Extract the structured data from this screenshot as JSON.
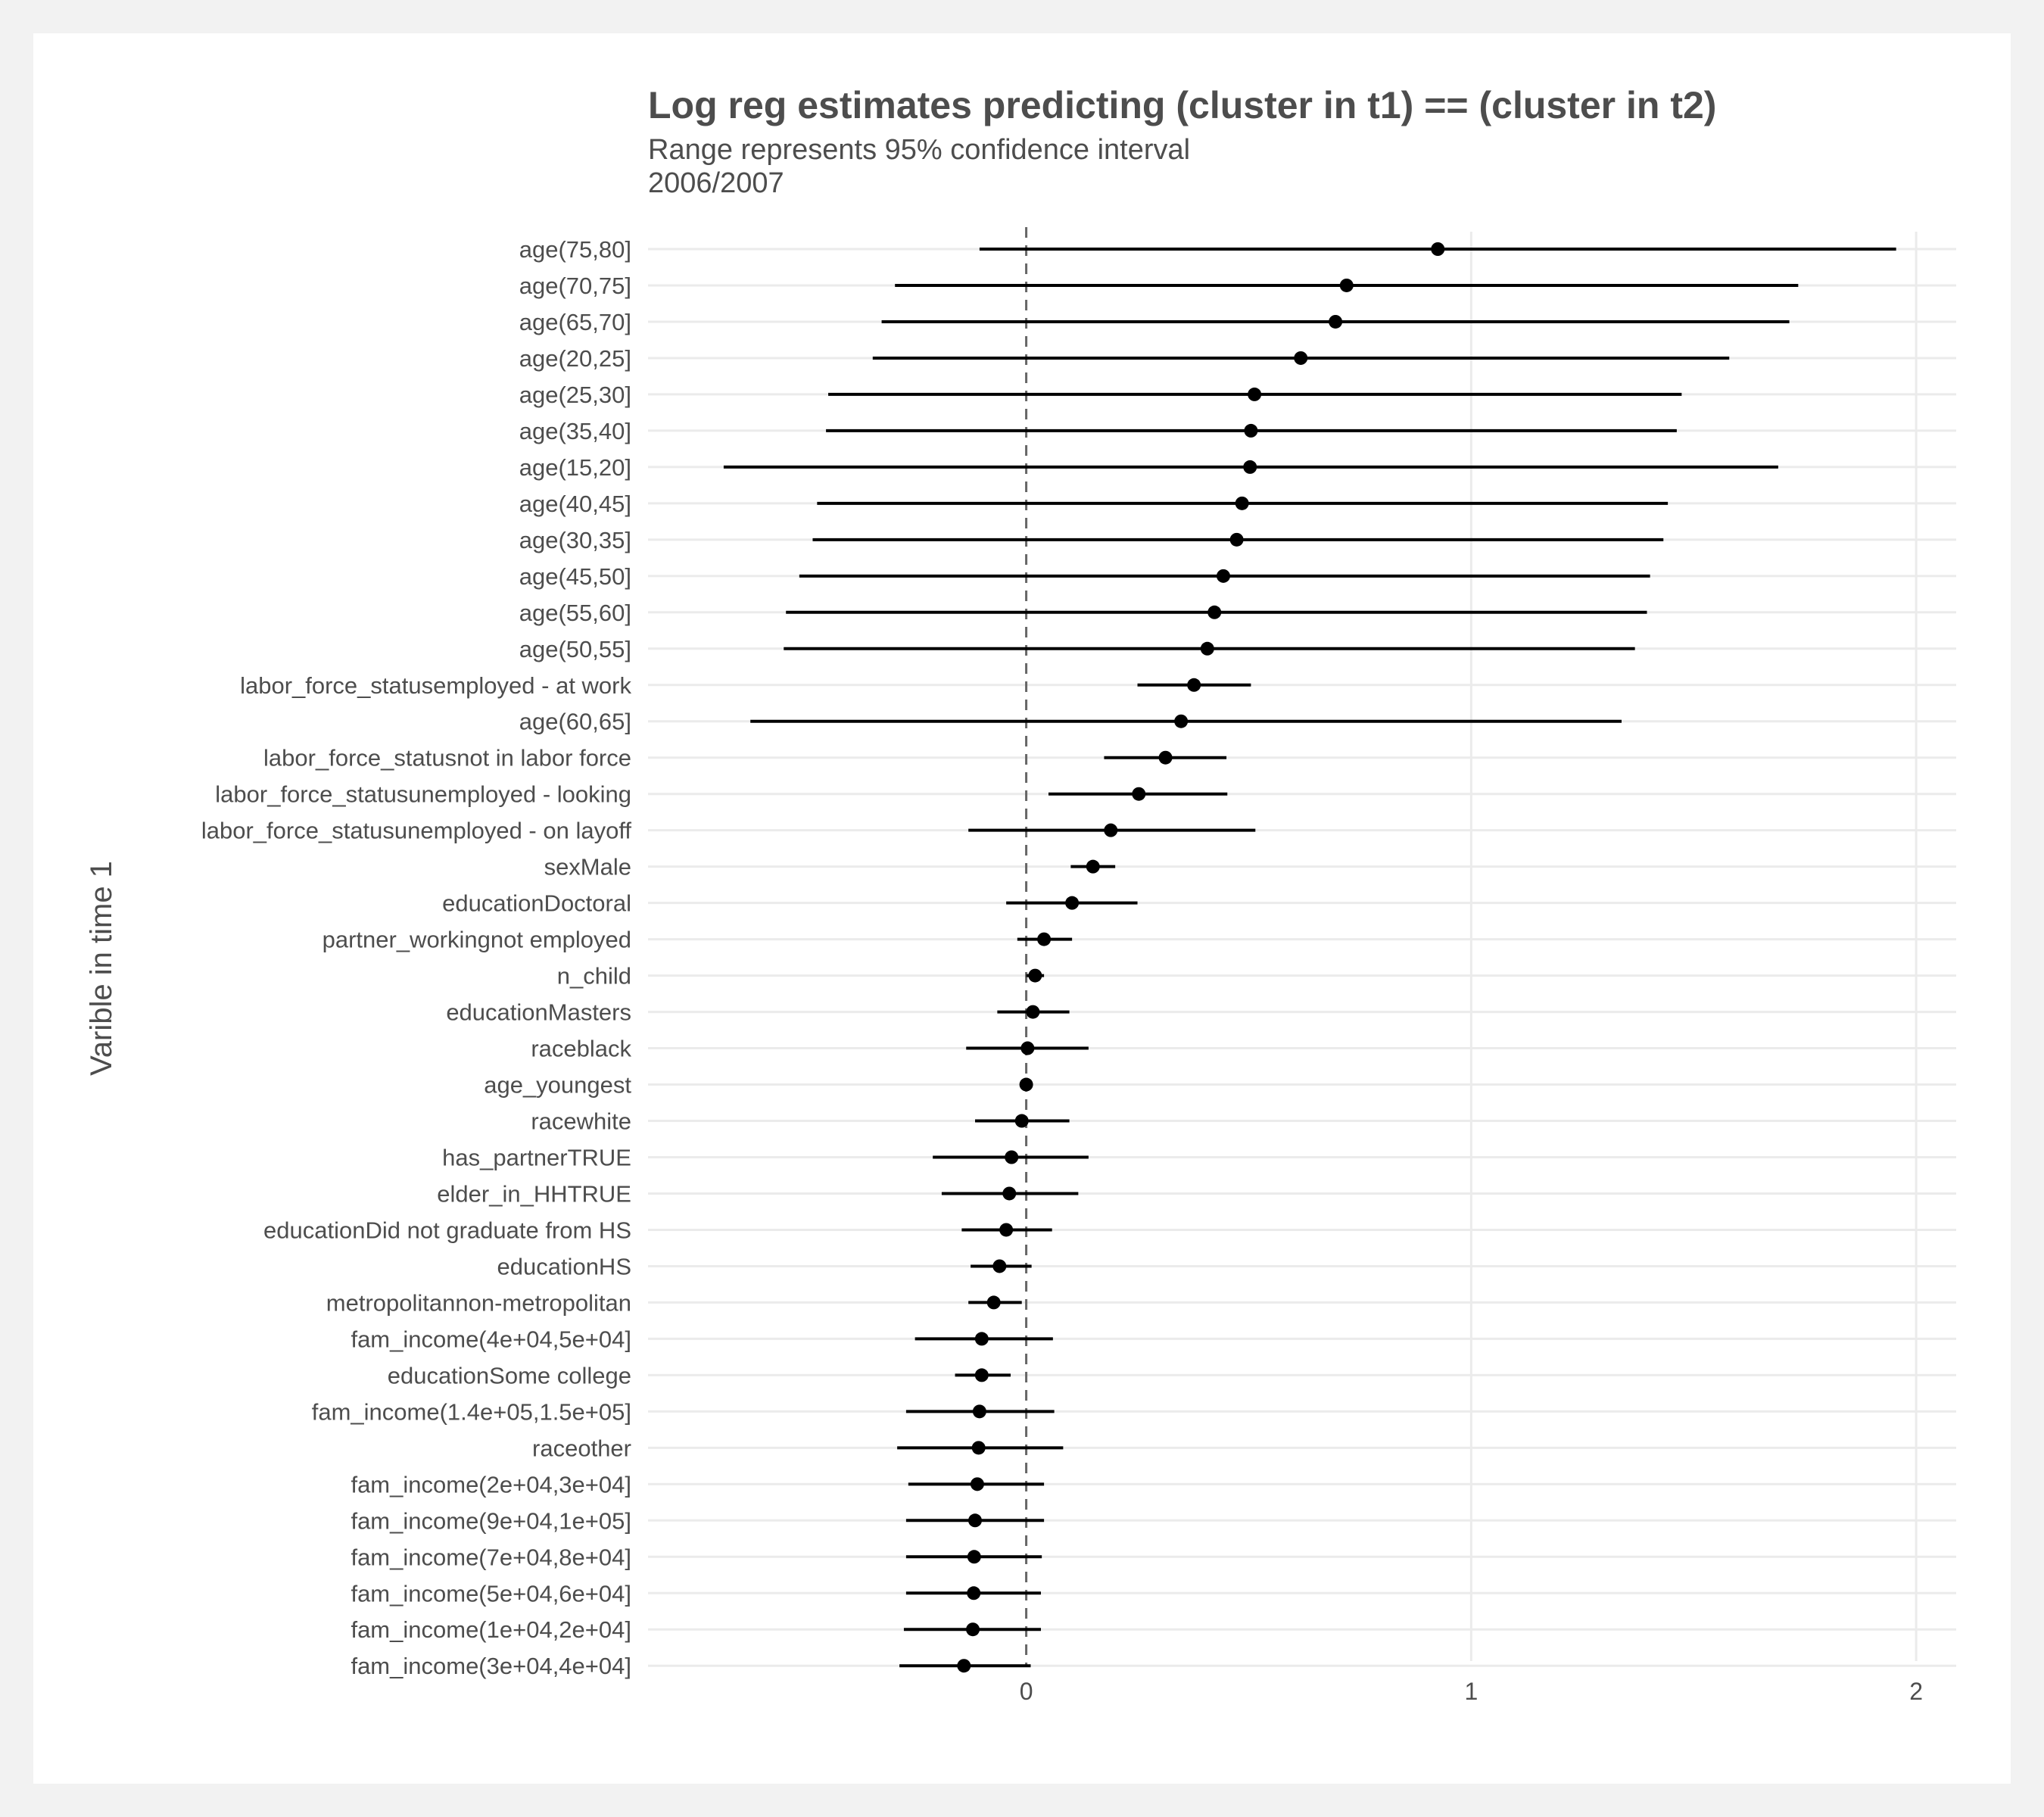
{
  "chart_data": {
    "type": "scatter",
    "subtype": "coefficient-plot",
    "title": "Log reg estimates predicting (cluster in t1) == (cluster in t2)",
    "subtitle_lines": [
      "Range represents 95% confidence interval",
      "2006/2007"
    ],
    "xlabel": "",
    "ylabel": "Varible in time 1",
    "xlim": [
      -0.85,
      2.09
    ],
    "x_ticks": [
      0,
      1,
      2
    ],
    "reference_line": 0,
    "grid": true,
    "legend": "none",
    "colors": {
      "point": "#000000",
      "interval": "#000000",
      "grid": "#ebebeb",
      "reference": "#666666"
    },
    "rows": [
      {
        "label": "age(75,80]",
        "estimate": 0.925,
        "lower": -0.105,
        "upper": 1.955
      },
      {
        "label": "age(70,75]",
        "estimate": 0.72,
        "lower": -0.295,
        "upper": 1.735
      },
      {
        "label": "age(65,70]",
        "estimate": 0.695,
        "lower": -0.325,
        "upper": 1.715
      },
      {
        "label": "age(20,25]",
        "estimate": 0.617,
        "lower": -0.345,
        "upper": 1.58
      },
      {
        "label": "age(25,30]",
        "estimate": 0.513,
        "lower": -0.445,
        "upper": 1.473
      },
      {
        "label": "age(35,40]",
        "estimate": 0.505,
        "lower": -0.45,
        "upper": 1.462
      },
      {
        "label": "age(15,20]",
        "estimate": 0.503,
        "lower": -0.68,
        "upper": 1.69
      },
      {
        "label": "age(40,45]",
        "estimate": 0.485,
        "lower": -0.47,
        "upper": 1.442
      },
      {
        "label": "age(30,35]",
        "estimate": 0.473,
        "lower": -0.48,
        "upper": 1.432
      },
      {
        "label": "age(45,50]",
        "estimate": 0.443,
        "lower": -0.51,
        "upper": 1.402
      },
      {
        "label": "age(55,60]",
        "estimate": 0.423,
        "lower": -0.54,
        "upper": 1.395
      },
      {
        "label": "age(50,55]",
        "estimate": 0.407,
        "lower": -0.545,
        "upper": 1.368
      },
      {
        "label": "labor_force_statusemployed - at work",
        "estimate": 0.377,
        "lower": 0.25,
        "upper": 0.505
      },
      {
        "label": "age(60,65]",
        "estimate": 0.348,
        "lower": -0.62,
        "upper": 1.338
      },
      {
        "label": "labor_force_statusnot in labor force",
        "estimate": 0.313,
        "lower": 0.175,
        "upper": 0.45
      },
      {
        "label": "labor_force_statusunemployed - looking",
        "estimate": 0.253,
        "lower": 0.05,
        "upper": 0.452
      },
      {
        "label": "labor_force_statusunemployed - on layoff",
        "estimate": 0.19,
        "lower": -0.13,
        "upper": 0.515
      },
      {
        "label": "sexMale",
        "estimate": 0.15,
        "lower": 0.1,
        "upper": 0.2
      },
      {
        "label": "educationDoctoral",
        "estimate": 0.103,
        "lower": -0.045,
        "upper": 0.25
      },
      {
        "label": "partner_workingnot employed",
        "estimate": 0.04,
        "lower": -0.02,
        "upper": 0.103
      },
      {
        "label": "n_child",
        "estimate": 0.02,
        "lower": 0.0,
        "upper": 0.04
      },
      {
        "label": "educationMasters",
        "estimate": 0.015,
        "lower": -0.065,
        "upper": 0.097
      },
      {
        "label": "raceblack",
        "estimate": 0.003,
        "lower": -0.135,
        "upper": 0.14
      },
      {
        "label": "age_youngest",
        "estimate": 0.0,
        "lower": -0.005,
        "upper": 0.005
      },
      {
        "label": "racewhite",
        "estimate": -0.01,
        "lower": -0.115,
        "upper": 0.097
      },
      {
        "label": "has_partnerTRUE",
        "estimate": -0.033,
        "lower": -0.21,
        "upper": 0.14
      },
      {
        "label": "elder_in_HHTRUE",
        "estimate": -0.038,
        "lower": -0.19,
        "upper": 0.117
      },
      {
        "label": "educationDid not graduate from HS",
        "estimate": -0.045,
        "lower": -0.145,
        "upper": 0.058
      },
      {
        "label": "educationHS",
        "estimate": -0.06,
        "lower": -0.125,
        "upper": 0.012
      },
      {
        "label": "metropolitannon-metropolitan",
        "estimate": -0.073,
        "lower": -0.13,
        "upper": -0.01
      },
      {
        "label": "fam_income(4e+04,5e+04]",
        "estimate": -0.1,
        "lower": -0.25,
        "upper": 0.06
      },
      {
        "label": "educationSome college",
        "estimate": -0.1,
        "lower": -0.16,
        "upper": -0.035
      },
      {
        "label": "fam_income(1.4e+05,1.5e+05]",
        "estimate": -0.105,
        "lower": -0.27,
        "upper": 0.063
      },
      {
        "label": "raceother",
        "estimate": -0.107,
        "lower": -0.29,
        "upper": 0.083
      },
      {
        "label": "fam_income(2e+04,3e+04]",
        "estimate": -0.11,
        "lower": -0.265,
        "upper": 0.04
      },
      {
        "label": "fam_income(9e+04,1e+05]",
        "estimate": -0.115,
        "lower": -0.27,
        "upper": 0.04
      },
      {
        "label": "fam_income(7e+04,8e+04]",
        "estimate": -0.117,
        "lower": -0.27,
        "upper": 0.035
      },
      {
        "label": "fam_income(5e+04,6e+04]",
        "estimate": -0.118,
        "lower": -0.27,
        "upper": 0.033
      },
      {
        "label": "fam_income(1e+04,2e+04]",
        "estimate": -0.12,
        "lower": -0.275,
        "upper": 0.033
      },
      {
        "label": "fam_income(3e+04,4e+04]",
        "estimate": -0.14,
        "lower": -0.285,
        "upper": 0.01
      }
    ]
  }
}
